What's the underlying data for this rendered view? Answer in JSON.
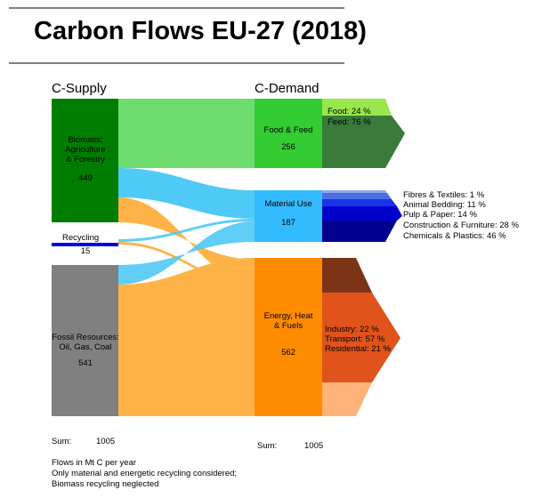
{
  "title": "Carbon Flows EU-27 (2018)",
  "headers": {
    "supply": "C-Supply",
    "demand": "C-Demand"
  },
  "supply": {
    "biomass": {
      "lines": [
        "Biomass:",
        "Agriculture",
        "& Forestry"
      ],
      "value": "449"
    },
    "recycling": {
      "label": "Recycling",
      "value": "15"
    },
    "fossil": {
      "lines": [
        "Fossil Resources:",
        "Oil, Gas, Coal"
      ],
      "value": "541"
    },
    "sum_label": "Sum:",
    "sum_value": "1005"
  },
  "demand": {
    "food": {
      "label": "Food & Feed",
      "value": "256"
    },
    "material": {
      "label": "Material Use",
      "value": "187"
    },
    "energy": {
      "lines": [
        "Energy, Heat",
        "& Fuels"
      ],
      "value": "562"
    },
    "sum_label": "Sum:",
    "sum_value": "1005"
  },
  "breakdowns": {
    "food": [
      "Food: 24 %",
      "Feed: 76 %"
    ],
    "material": [
      "Fibres & Textiles: 1 %",
      "Animal Bedding: 11 %",
      "Pulp & Paper: 14 %",
      "Construction & Furniture: 28 %",
      "Chemicals & Plastics: 46 %"
    ],
    "energy": [
      "Industry: 22 %",
      "Transport: 57 %",
      "Residential: 21 %"
    ]
  },
  "notes": [
    "Flows in Mt C per year",
    "Only material and energetic recycling considered;",
    "Biomass recycling neglected"
  ],
  "colors": {
    "biomass": "#007d00",
    "recycling": "#0000e0",
    "fossil": "#808080",
    "food": "#33cc33",
    "food_flow": "#6fdc6f",
    "food_light": "#99e64d",
    "food_dark": "#3a7a3a",
    "material": "#33bbff",
    "material_flow": "#4fc9f5",
    "energy": "#ff8c00",
    "energy_flow": "#ffb347",
    "fibres": "#8aa8ee",
    "bedding": "#4a6ee8",
    "pulp": "#1a33e6",
    "construction": "#0000cc",
    "chemicals": "#000090",
    "industry": "#7b3416",
    "transport": "#e0541c",
    "residential": "#ffb27a"
  }
}
